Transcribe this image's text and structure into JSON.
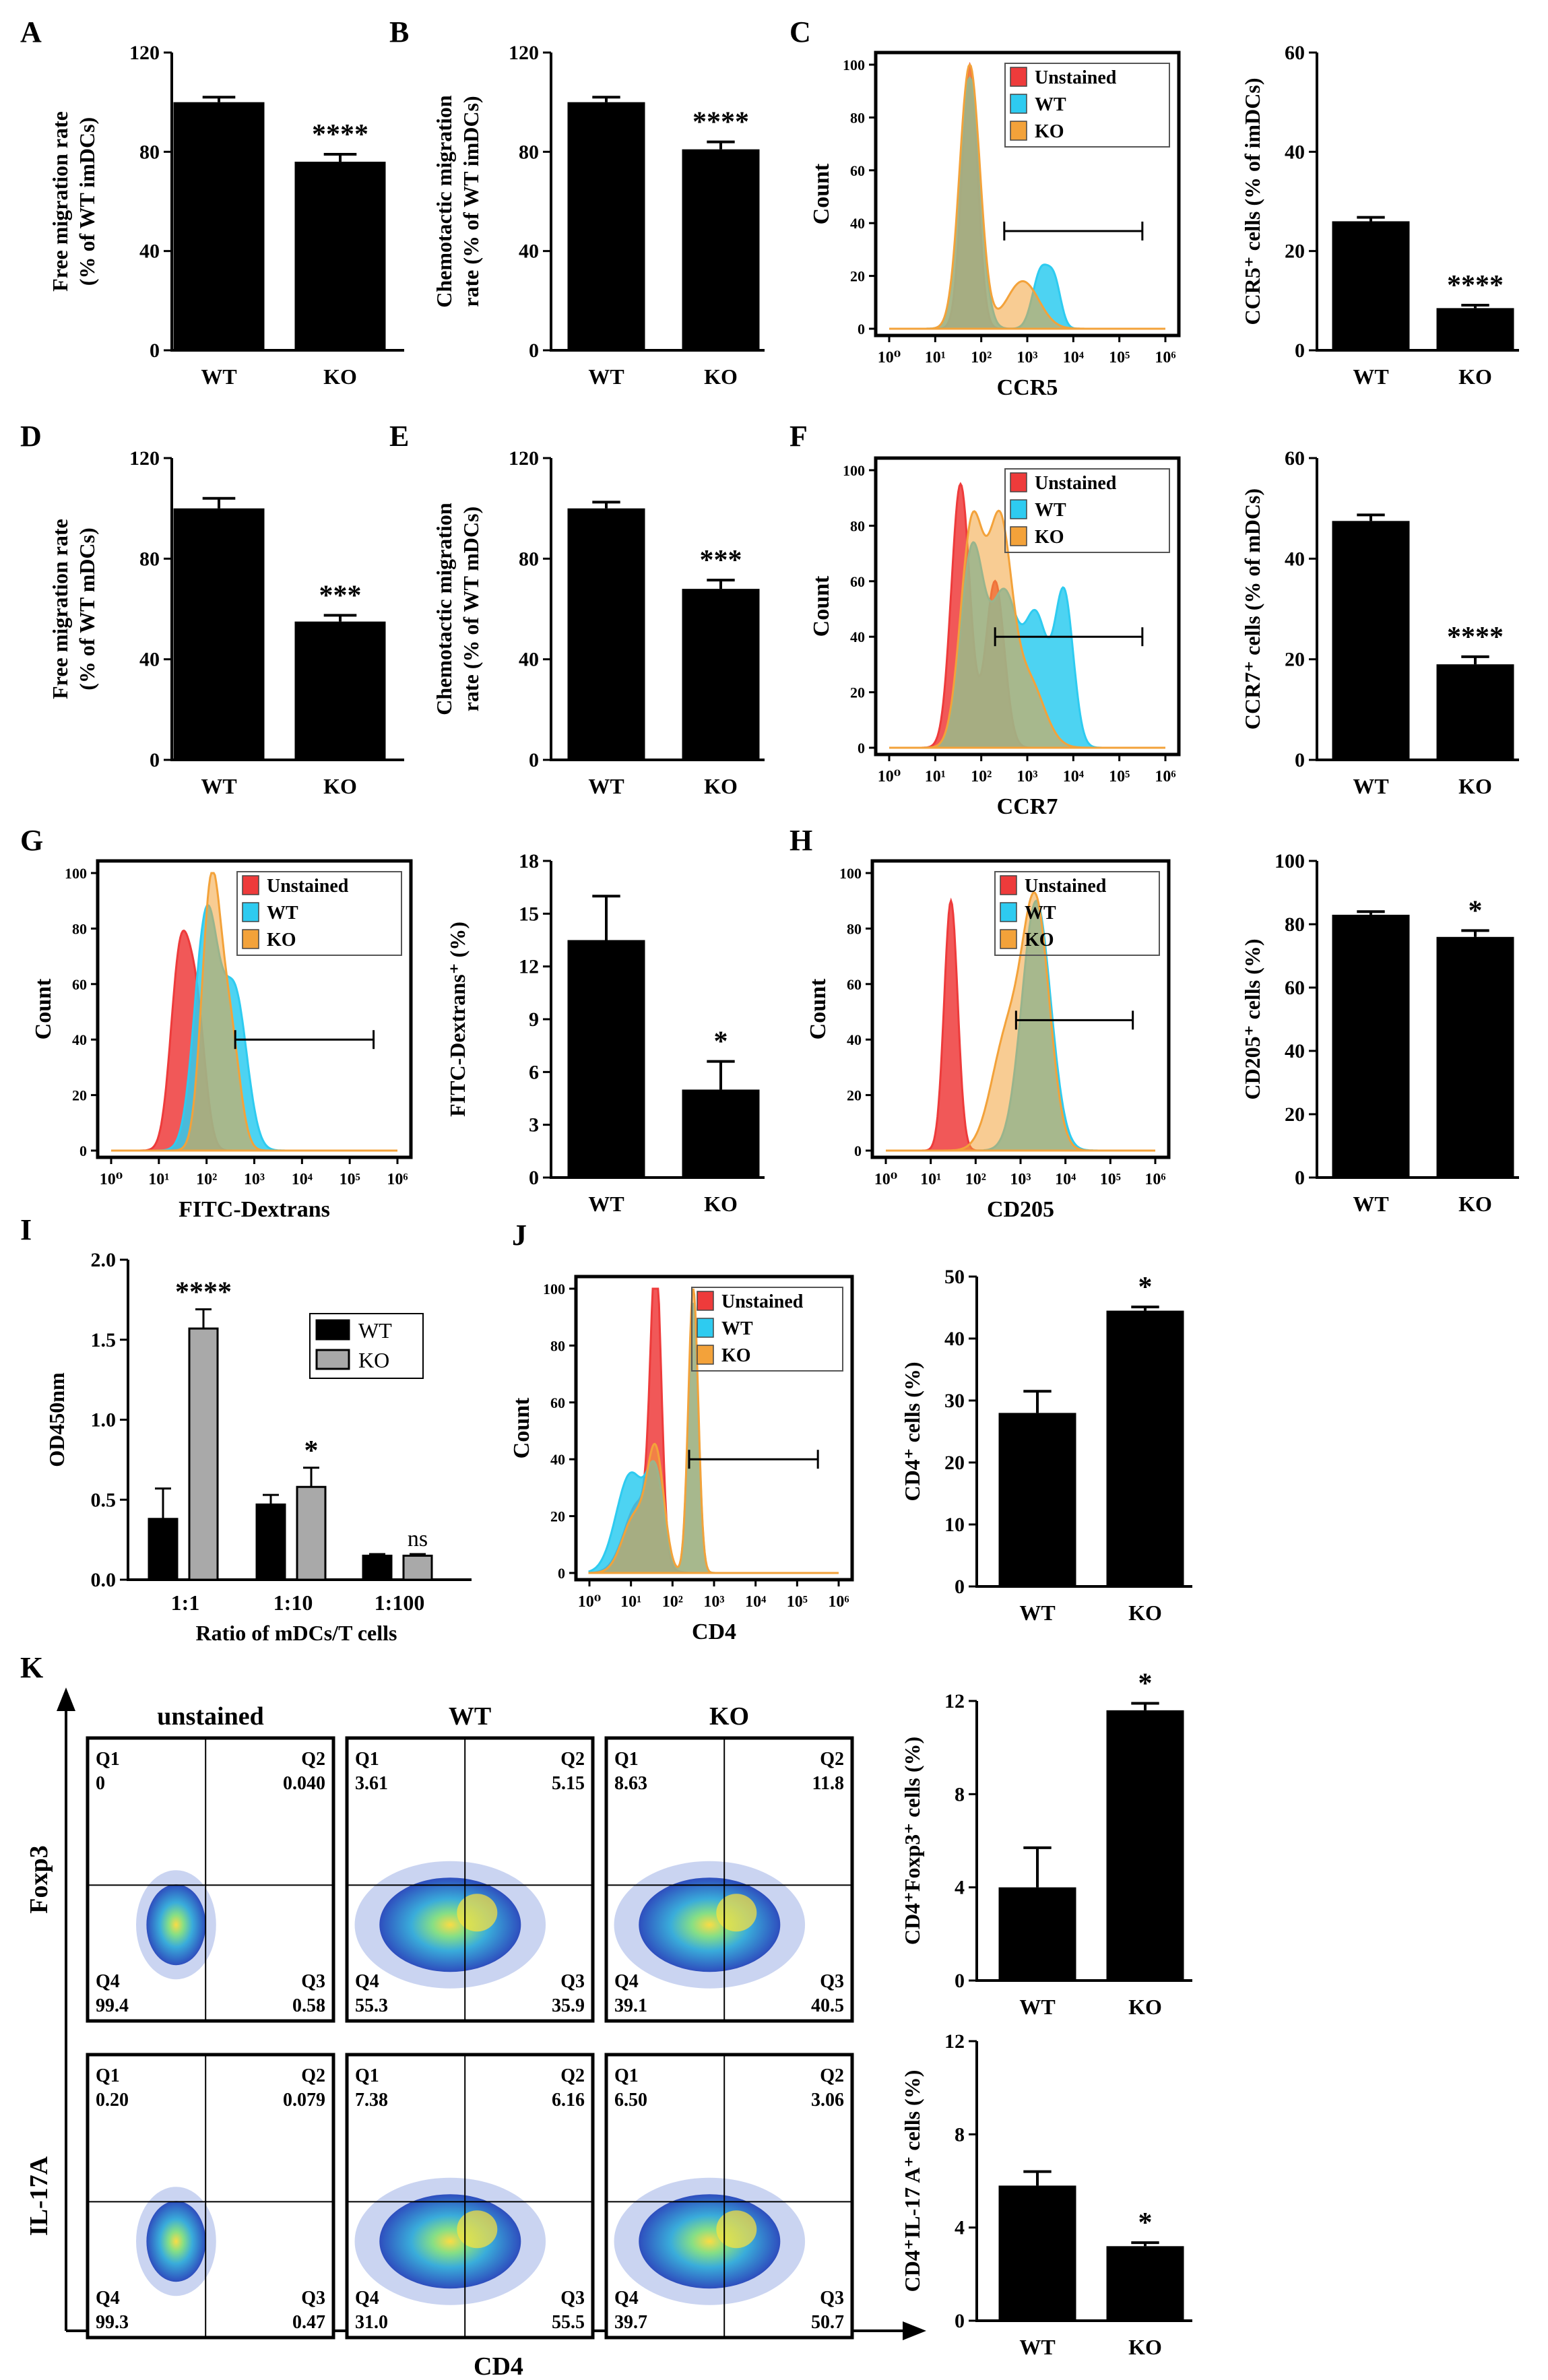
{
  "colors": {
    "unstained": "#ee3b3b",
    "wt": "#2ecbf0",
    "ko": "#f3a23a",
    "bar_wt": "#000000",
    "bar_ko": "#a9a9a9"
  },
  "legend_labels": [
    "Unstained",
    "WT",
    "KO"
  ],
  "chart_data": [
    {
      "id": "A",
      "type": "bar",
      "letter": "A",
      "ylabel": [
        "Free migration rate",
        "(% of WT imDCs)"
      ],
      "categories": [
        "WT",
        "KO"
      ],
      "values": [
        100,
        76
      ],
      "errors": [
        2,
        3
      ],
      "ylim": [
        0,
        120
      ],
      "yticks": [
        0,
        40,
        80,
        120
      ],
      "sig": "****"
    },
    {
      "id": "B",
      "type": "bar",
      "letter": "B",
      "ylabel": [
        "Chemotactic migration",
        "rate (% of WT imDCs)"
      ],
      "categories": [
        "WT",
        "KO"
      ],
      "values": [
        100,
        81
      ],
      "errors": [
        2,
        3
      ],
      "ylim": [
        0,
        120
      ],
      "yticks": [
        0,
        40,
        80,
        120
      ],
      "sig": "****"
    },
    {
      "id": "C",
      "type": "histogram",
      "letter": "C",
      "xlabel": "CCR5",
      "ylabel": "Count",
      "yticks": [
        0,
        20,
        40,
        60,
        80,
        100
      ],
      "legend": true
    },
    {
      "id": "C2",
      "type": "bar",
      "ylabel": [
        "CCR5⁺ cells (% of imDCs)"
      ],
      "categories": [
        "WT",
        "KO"
      ],
      "values": [
        26,
        8.5
      ],
      "errors": [
        0.8,
        0.6
      ],
      "ylim": [
        0,
        60
      ],
      "yticks": [
        0,
        20,
        40,
        60
      ],
      "sig": "****"
    },
    {
      "id": "D",
      "type": "bar",
      "letter": "D",
      "ylabel": [
        "Free migration rate",
        "(% of WT mDCs)"
      ],
      "categories": [
        "WT",
        "KO"
      ],
      "values": [
        100,
        55
      ],
      "errors": [
        4,
        2.5
      ],
      "ylim": [
        0,
        120
      ],
      "yticks": [
        0,
        40,
        80,
        120
      ],
      "sig": "***"
    },
    {
      "id": "E",
      "type": "bar",
      "letter": "E",
      "ylabel": [
        "Chemotactic migration",
        "rate (% of WT mDCs)"
      ],
      "categories": [
        "WT",
        "KO"
      ],
      "values": [
        100,
        68
      ],
      "errors": [
        2.5,
        3.5
      ],
      "ylim": [
        0,
        120
      ],
      "yticks": [
        0,
        40,
        80,
        120
      ],
      "sig": "***"
    },
    {
      "id": "F",
      "type": "histogram",
      "letter": "F",
      "xlabel": "CCR7",
      "ylabel": "Count",
      "yticks": [
        0,
        20,
        40,
        60,
        80,
        100
      ],
      "legend": true
    },
    {
      "id": "F2",
      "type": "bar",
      "ylabel": [
        "CCR7⁺ cells (% of mDCs)"
      ],
      "categories": [
        "WT",
        "KO"
      ],
      "values": [
        47.5,
        19
      ],
      "errors": [
        1.2,
        1.5
      ],
      "ylim": [
        0,
        60
      ],
      "yticks": [
        0,
        20,
        40,
        60
      ],
      "sig": "****"
    },
    {
      "id": "G",
      "type": "histogram",
      "letter": "G",
      "xlabel": "FITC-Dextrans",
      "ylabel": "Count",
      "yticks": [
        0,
        20,
        40,
        60,
        80,
        100
      ],
      "legend": true
    },
    {
      "id": "G2",
      "type": "bar",
      "ylabel": [
        "FITC-Dextrans⁺ (%)"
      ],
      "categories": [
        "WT",
        "KO"
      ],
      "values": [
        13.5,
        5
      ],
      "errors": [
        2.5,
        1.6
      ],
      "ylim": [
        0,
        18
      ],
      "yticks": [
        0,
        3,
        6,
        9,
        12,
        15,
        18
      ],
      "sig": "*"
    },
    {
      "id": "H",
      "type": "histogram",
      "letter": "H",
      "xlabel": "CD205",
      "ylabel": "Count",
      "yticks": [
        0,
        20,
        40,
        60,
        80,
        100
      ],
      "legend": true
    },
    {
      "id": "H2",
      "type": "bar",
      "ylabel": [
        "CD205⁺ cells (%)"
      ],
      "categories": [
        "WT",
        "KO"
      ],
      "values": [
        83,
        76
      ],
      "errors": [
        1,
        2
      ],
      "ylim": [
        0,
        100
      ],
      "yticks": [
        0,
        20,
        40,
        60,
        80,
        100
      ],
      "sig": "*"
    },
    {
      "id": "I",
      "type": "grouped-bar",
      "letter": "I",
      "ylabel": "OD450nm",
      "xlabel": "Ratio of mDCs/T cells",
      "categories": [
        "1:1",
        "1:10",
        "1:100"
      ],
      "series": [
        {
          "name": "WT",
          "values": [
            0.38,
            0.47,
            0.15
          ],
          "errors": [
            0.19,
            0.06,
            0.01
          ]
        },
        {
          "name": "KO",
          "values": [
            1.57,
            0.58,
            0.15
          ],
          "errors": [
            0.12,
            0.12,
            0.01
          ]
        }
      ],
      "ylim": [
        0,
        2
      ],
      "yticks": [
        "0.0",
        "0.5",
        "1.0",
        "1.5",
        "2.0"
      ],
      "sigs": [
        "****",
        "*",
        "ns"
      ]
    },
    {
      "id": "J",
      "type": "histogram",
      "letter": "J",
      "xlabel": "CD4",
      "ylabel": "Count",
      "yticks": [
        0,
        20,
        40,
        60,
        80,
        100
      ],
      "legend": true
    },
    {
      "id": "J2",
      "type": "bar",
      "ylabel": [
        "CD4⁺ cells (%)"
      ],
      "categories": [
        "WT",
        "KO"
      ],
      "values": [
        28,
        44.5
      ],
      "errors": [
        3.5,
        0.6
      ],
      "ylim": [
        0,
        50
      ],
      "yticks": [
        0,
        10,
        20,
        30,
        40,
        50
      ],
      "sig": "*"
    },
    {
      "id": "K2",
      "type": "bar",
      "ylabel": [
        "CD4⁺Foxp3⁺ cells (%)"
      ],
      "categories": [
        "WT",
        "KO"
      ],
      "values": [
        4,
        11.6
      ],
      "errors": [
        1.7,
        0.3
      ],
      "ylim": [
        0,
        12
      ],
      "yticks": [
        0,
        4,
        8,
        12
      ],
      "sig": "*"
    },
    {
      "id": "K3",
      "type": "bar",
      "ylabel": [
        "CD4⁺IL-17 A⁺ cells (%)"
      ],
      "categories": [
        "WT",
        "KO"
      ],
      "values": [
        5.8,
        3.2
      ],
      "errors": [
        0.6,
        0.15
      ],
      "ylim": [
        0,
        12
      ],
      "yticks": [
        0,
        4,
        8,
        12
      ],
      "sig": "*"
    }
  ],
  "histogram_xticks": [
    "10⁰",
    "10¹",
    "10²",
    "10³",
    "10⁴",
    "10⁵",
    "10⁶"
  ],
  "histogram_ticks_J": [
    "10⁰",
    "10¹",
    "10²",
    "10³",
    "10⁴",
    "10⁵",
    "10⁶"
  ],
  "K": {
    "letter": "K",
    "columns": [
      "unstained",
      "WT",
      "KO"
    ],
    "rows": [
      "Foxp3",
      "IL-17A"
    ],
    "xlabel": "CD4",
    "quadrant_labels": [
      "Q1",
      "Q2",
      "Q3",
      "Q4"
    ],
    "values": [
      [
        [
          "0",
          "0.040",
          "0.58",
          "99.4"
        ],
        [
          "3.61",
          "5.15",
          "35.9",
          "55.3"
        ],
        [
          "8.63",
          "11.8",
          "40.5",
          "39.1"
        ]
      ],
      [
        [
          "0.20",
          "0.079",
          "0.47",
          "99.3"
        ],
        [
          "7.38",
          "6.16",
          "55.5",
          "31.0"
        ],
        [
          "6.50",
          "3.06",
          "50.7",
          "39.7"
        ]
      ]
    ]
  }
}
